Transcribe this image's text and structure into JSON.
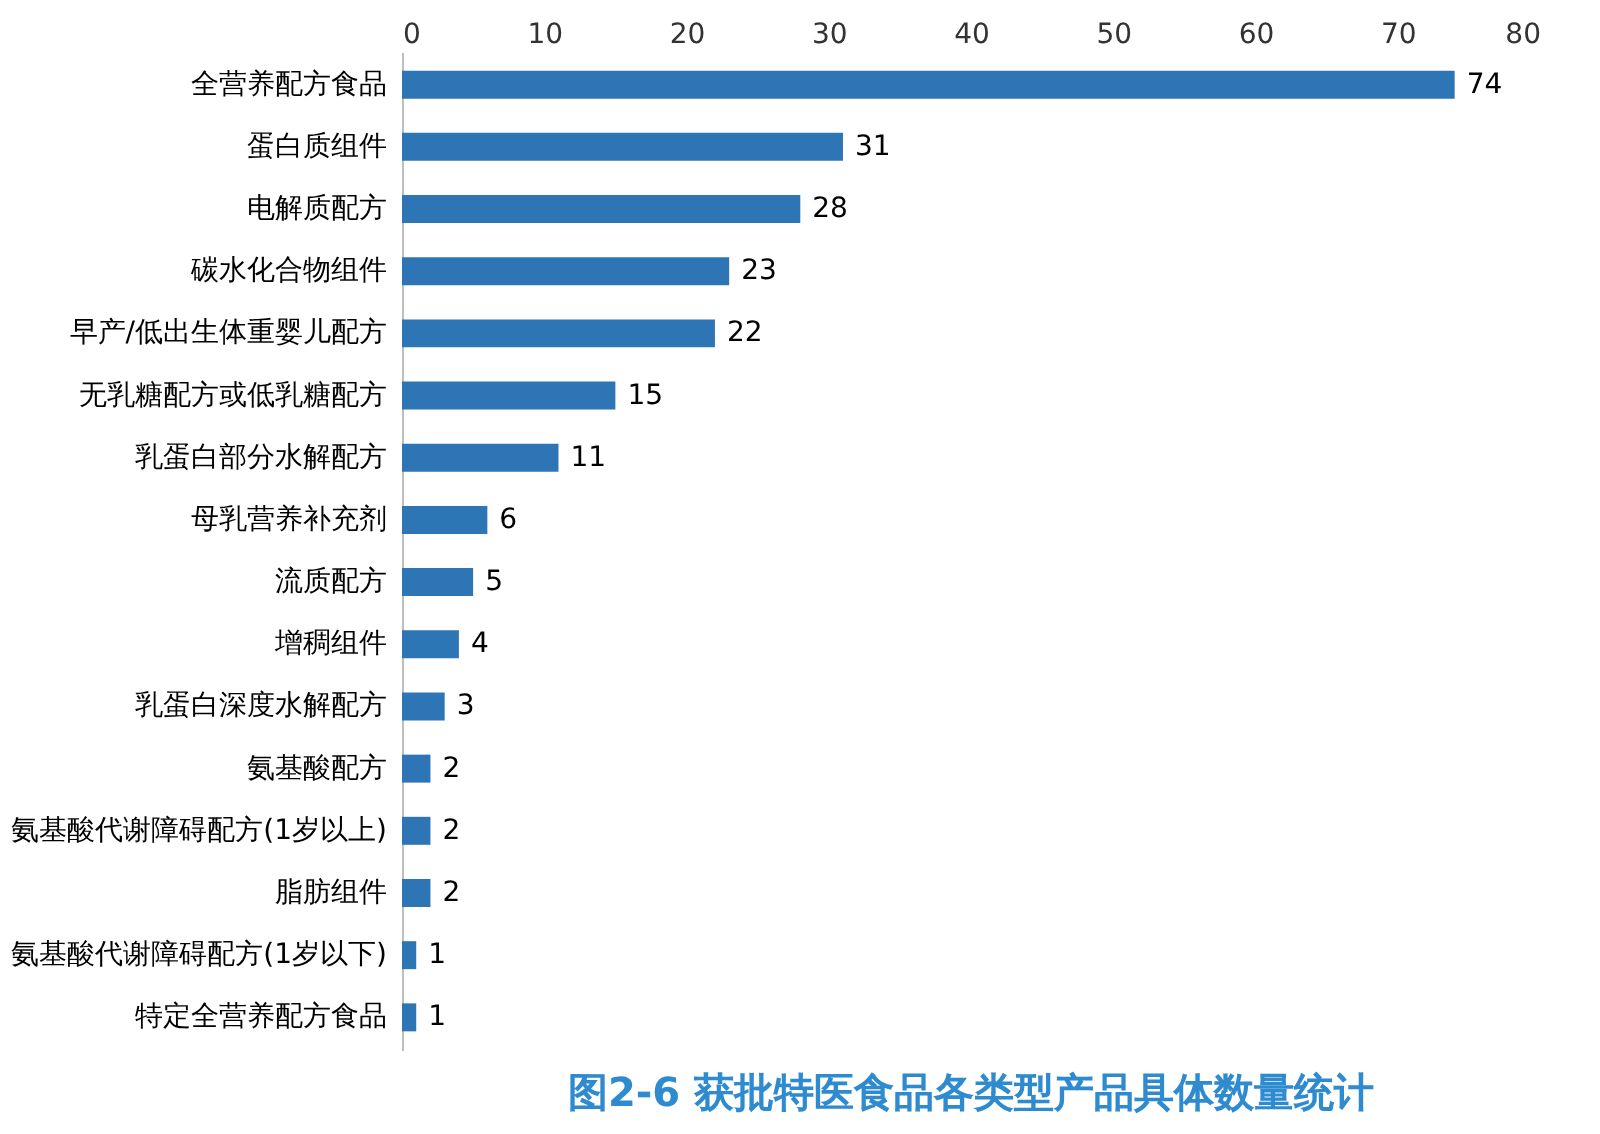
{
  "chart_data": {
    "type": "bar",
    "orientation": "horizontal",
    "title": "图2-6 获批特医食品各类型产品具体数量统计",
    "categories": [
      "全营养配方食品",
      "蛋白质组件",
      "电解质配方",
      "碳水化合物组件",
      "早产/低出生体重婴儿配方",
      "无乳糖配方或低乳糖配方",
      "乳蛋白部分水解配方",
      "母乳营养补充剂",
      "流质配方",
      "增稠组件",
      "乳蛋白深度水解配方",
      "氨基酸配方",
      "氨基酸代谢障碍配方(1岁以上)",
      "脂肪组件",
      "氨基酸代谢障碍配方(1岁以下)",
      "特定全营养配方食品"
    ],
    "values": [
      74,
      31,
      28,
      23,
      22,
      15,
      11,
      6,
      5,
      4,
      3,
      2,
      2,
      2,
      1,
      1
    ],
    "color": "#2e75b6",
    "xlim": [
      0,
      80
    ],
    "xticks": [
      0,
      10,
      20,
      30,
      40,
      50,
      60,
      70,
      80
    ],
    "grid": false,
    "data_labels": true
  }
}
